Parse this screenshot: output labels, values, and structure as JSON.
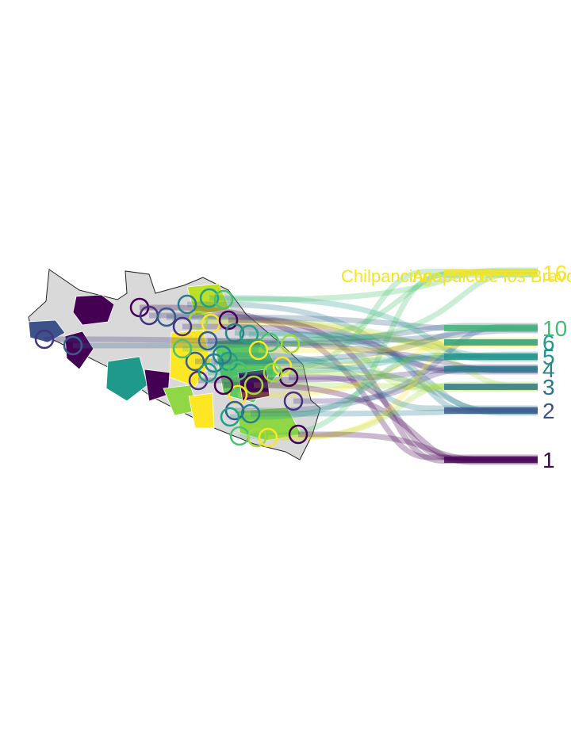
{
  "map": {
    "region_base_color": "#d9d9d9",
    "region_border_color": "#ffffff",
    "outline_color": "#222222"
  },
  "palette": [
    "#440154",
    "#46327e",
    "#365c8d",
    "#277f8e",
    "#1fa187",
    "#4ac16d",
    "#a0da39",
    "#fde725"
  ],
  "rank_labels": [
    {
      "text": "1",
      "color": "#440154"
    },
    {
      "text": "2",
      "color": "#3b528b"
    },
    {
      "text": "3",
      "color": "#2c728e"
    },
    {
      "text": "4",
      "color": "#27808e"
    },
    {
      "text": "5",
      "color": "#21918c"
    },
    {
      "text": "6",
      "color": "#1f9a8a"
    },
    {
      "text": "10",
      "color": "#3fbc73"
    },
    {
      "text": "16",
      "color": "#fde725"
    }
  ],
  "city_labels": [
    {
      "text": "Chilpancingo",
      "color": "#f3e51e"
    },
    {
      "text": "Acapulco",
      "color": "#f3e51e"
    },
    {
      "text": "de los Bravo",
      "color": "#f3e51e"
    }
  ]
}
